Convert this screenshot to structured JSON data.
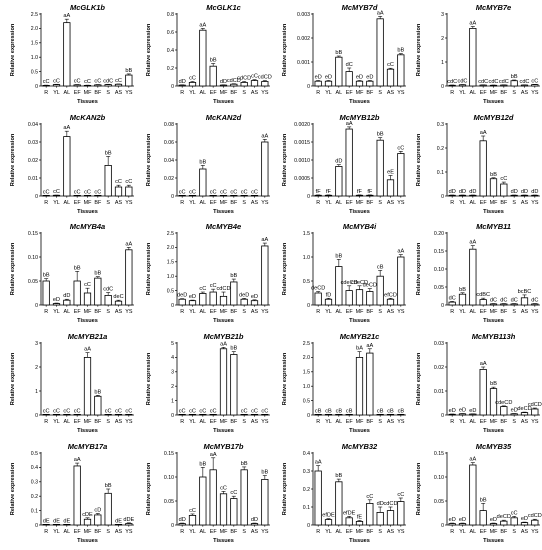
{
  "figure": {
    "xlabel": "Tissues",
    "ylabel": "Relative expression",
    "categories": [
      "R",
      "YL",
      "AL",
      "EF",
      "MF",
      "BF",
      "S",
      "AS",
      "YS"
    ]
  },
  "chart_data": [
    {
      "type": "bar",
      "title": "McGLK1b",
      "ylim": [
        0,
        2.5
      ],
      "yticks": [
        "0",
        "0.5",
        "1.0",
        "1.5",
        "2.0",
        "2.5"
      ],
      "values": [
        0.02,
        0.05,
        2.2,
        0.04,
        0.02,
        0.04,
        0.05,
        0.06,
        0.38
      ],
      "errors": [
        0.01,
        0.01,
        0.12,
        0.01,
        0.01,
        0.01,
        0.01,
        0.01,
        0.04
      ],
      "labels": [
        "cC",
        "cC",
        "aA",
        "cC",
        "cC",
        "cC",
        "cdC",
        "cC",
        "bB"
      ]
    },
    {
      "type": "bar",
      "title": "McGLK1c",
      "ylim": [
        0,
        0.8
      ],
      "yticks": [
        "0",
        "0.2",
        "0.4",
        "0.6",
        "0.8"
      ],
      "values": [
        0.01,
        0.04,
        0.62,
        0.22,
        0.01,
        0.02,
        0.04,
        0.06,
        0.05
      ],
      "errors": [
        0.003,
        0.01,
        0.02,
        0.03,
        0.003,
        0.005,
        0.01,
        0.01,
        0.01
      ],
      "labels": [
        "dD",
        "cC",
        "aA",
        "bB",
        "dD",
        "cdCD",
        "cdCD",
        "cC",
        "cdCD"
      ]
    },
    {
      "type": "bar",
      "title": "McMYB7d",
      "ylim": [
        0,
        0.003
      ],
      "yticks": [
        "0",
        "0.001",
        "0.002",
        "0.003"
      ],
      "values": [
        0.0002,
        0.0002,
        0.0012,
        0.0006,
        0.0002,
        0.0002,
        0.0028,
        0.0007,
        0.0013
      ],
      "errors": [
        3e-05,
        3e-05,
        5e-05,
        0.00015,
        3e-05,
        3e-05,
        0.0001,
        4e-05,
        5e-05
      ],
      "labels": [
        "eD",
        "eD",
        "bB",
        "dC",
        "eD",
        "eD",
        "aA",
        "cC",
        "bB"
      ]
    },
    {
      "type": "bar",
      "title": "McMYB7e",
      "ylim": [
        0,
        3
      ],
      "yticks": [
        "0",
        "1",
        "2",
        "3"
      ],
      "values": [
        0.03,
        0.05,
        2.4,
        0.04,
        0.03,
        0.04,
        0.22,
        0.04,
        0.06
      ],
      "errors": [
        0.01,
        0.01,
        0.08,
        0.01,
        0.01,
        0.01,
        0.03,
        0.01,
        0.01
      ],
      "labels": [
        "cdC",
        "cdC",
        "aA",
        "cdC",
        "cdC",
        "cdC",
        "bB",
        "cdC",
        "cC"
      ]
    },
    {
      "type": "bar",
      "title": "McKAN2b",
      "ylim": [
        0,
        0.04
      ],
      "yticks": [
        "0",
        "0.01",
        "0.02",
        "0.03",
        "0.04"
      ],
      "values": [
        0.0003,
        0.0004,
        0.033,
        0.0003,
        0.0003,
        0.0003,
        0.017,
        0.005,
        0.005
      ],
      "errors": [
        0.0001,
        0.0001,
        0.003,
        0.0001,
        0.0001,
        0.0001,
        0.005,
        0.001,
        0.001
      ],
      "labels": [
        "cC",
        "cC",
        "aA",
        "cC",
        "cC",
        "cC",
        "bB",
        "cC",
        "cC"
      ]
    },
    {
      "type": "bar",
      "title": "McKAN2d",
      "ylim": [
        0,
        0.08
      ],
      "yticks": [
        "0",
        "0.02",
        "0.04",
        "0.06",
        "0.08"
      ],
      "values": [
        0.0003,
        0.0003,
        0.03,
        0.0005,
        0.0003,
        0.0003,
        0.0003,
        0.0003,
        0.06
      ],
      "errors": [
        0.0001,
        0.0001,
        0.004,
        0.0001,
        0.0001,
        0.0001,
        0.0001,
        0.0001,
        0.003
      ],
      "labels": [
        "cC",
        "cC",
        "bB",
        "cC",
        "cC",
        "cC",
        "cC",
        "cC",
        "aA"
      ]
    },
    {
      "type": "bar",
      "title": "McMYB12b",
      "ylim": [
        0,
        0.002
      ],
      "yticks": [
        "0",
        "0.0005",
        "0.0010",
        "0.0015",
        "0.0020"
      ],
      "values": [
        2e-05,
        2e-05,
        0.00082,
        0.00186,
        2e-05,
        2e-05,
        0.00155,
        0.00045,
        0.00118
      ],
      "errors": [
        1e-05,
        1e-05,
        5e-05,
        6e-05,
        1e-05,
        1e-05,
        7e-05,
        0.00012,
        6e-05
      ],
      "labels": [
        "fF",
        "fF",
        "dD",
        "aA",
        "fF",
        "fF",
        "bB",
        "eE",
        "cC"
      ]
    },
    {
      "type": "bar",
      "title": "McMYB12d",
      "ylim": [
        0,
        0.3
      ],
      "yticks": [
        "0",
        "0.1",
        "0.2",
        "0.3"
      ],
      "values": [
        0.003,
        0.003,
        0.003,
        0.23,
        0.072,
        0.05,
        0.003,
        0.003,
        0.003
      ],
      "errors": [
        0.001,
        0.001,
        0.001,
        0.02,
        0.004,
        0.008,
        0.001,
        0.001,
        0.001
      ],
      "labels": [
        "dD",
        "dD",
        "dD",
        "aA",
        "bB",
        "cC",
        "dD",
        "dD",
        "dD"
      ]
    },
    {
      "type": "bar",
      "title": "McMYB4a",
      "ylim": [
        0,
        0.15
      ],
      "yticks": [
        "0",
        "0.05",
        "0.10",
        "0.15"
      ],
      "values": [
        0.05,
        0.003,
        0.01,
        0.05,
        0.025,
        0.056,
        0.02,
        0.008,
        0.115
      ],
      "errors": [
        0.005,
        0.001,
        0.002,
        0.02,
        0.01,
        0.003,
        0.006,
        0.002,
        0.005
      ],
      "labels": [
        "bB",
        "eD",
        "dD",
        "bB",
        "cC",
        "bB",
        "cdC",
        "deC",
        "aA"
      ]
    },
    {
      "type": "bar",
      "title": "McMYB4e",
      "ylim": [
        0,
        2.5
      ],
      "yticks": [
        "0",
        "0.5",
        "1.0",
        "1.5",
        "2.0",
        "2.5"
      ],
      "values": [
        0.2,
        0.15,
        0.4,
        0.45,
        0.3,
        0.8,
        0.2,
        0.15,
        2.05
      ],
      "errors": [
        0.02,
        0.02,
        0.05,
        0.1,
        0.15,
        0.1,
        0.03,
        0.03,
        0.1
      ],
      "labels": [
        "deD",
        "eD",
        "cC",
        "cC",
        "cdCD",
        "bB",
        "deD",
        "eD",
        "aA"
      ]
    },
    {
      "type": "bar",
      "title": "McMYB4i",
      "ylim": [
        0,
        1.5
      ],
      "yticks": [
        "0",
        "0.5",
        "1.0",
        "1.5"
      ],
      "values": [
        0.25,
        0.12,
        0.8,
        0.3,
        0.32,
        0.28,
        0.6,
        0.12,
        1.0
      ],
      "errors": [
        0.03,
        0.02,
        0.15,
        0.1,
        0.08,
        0.06,
        0.12,
        0.02,
        0.05
      ],
      "labels": [
        "deCD",
        "fD",
        "bB",
        "cdeCD",
        "cdeCD",
        "deCD",
        "cB",
        "efCD",
        "aA"
      ]
    },
    {
      "type": "bar",
      "title": "McMYB11",
      "ylim": [
        0,
        0.2
      ],
      "yticks": [
        "0",
        "0.05",
        "0.10",
        "0.15",
        "0.20"
      ],
      "values": [
        0.008,
        0.03,
        0.155,
        0.015,
        0.003,
        0.003,
        0.003,
        0.02,
        0.003
      ],
      "errors": [
        0.002,
        0.004,
        0.01,
        0.004,
        0.001,
        0.001,
        0.001,
        0.008,
        0.001
      ],
      "labels": [
        "dC",
        "bB",
        "aA",
        "cdBC",
        "dC",
        "dC",
        "dC",
        "bcBC",
        "dC"
      ]
    },
    {
      "type": "bar",
      "title": "McMYB21a",
      "ylim": [
        0,
        3
      ],
      "yticks": [
        "0",
        "1",
        "2",
        "3"
      ],
      "values": [
        0.02,
        0.02,
        0.02,
        0.02,
        2.4,
        0.78,
        0.02,
        0.02,
        0.02
      ],
      "errors": [
        0.005,
        0.005,
        0.005,
        0.005,
        0.2,
        0.04,
        0.005,
        0.005,
        0.005
      ],
      "labels": [
        "cC",
        "cC",
        "cC",
        "cC",
        "aA",
        "bB",
        "cC",
        "cC",
        "cC"
      ]
    },
    {
      "type": "bar",
      "title": "McMYB21b",
      "ylim": [
        0,
        5
      ],
      "yticks": [
        "0",
        "1",
        "2",
        "3",
        "4",
        "5"
      ],
      "values": [
        0.02,
        0.02,
        0.02,
        0.02,
        4.6,
        4.2,
        0.02,
        0.02,
        0.02
      ],
      "errors": [
        0.005,
        0.005,
        0.005,
        0.005,
        0.1,
        0.2,
        0.005,
        0.005,
        0.005
      ],
      "labels": [
        "cC",
        "cC",
        "cC",
        "cC",
        "aA",
        "bB",
        "cC",
        "cC",
        "cC"
      ]
    },
    {
      "type": "bar",
      "title": "McMYB21c",
      "ylim": [
        0,
        2.5
      ],
      "yticks": [
        "0",
        "0.5",
        "1.0",
        "1.5",
        "2.0",
        "2.5"
      ],
      "values": [
        0.02,
        0.02,
        0.02,
        0.02,
        2.0,
        2.15,
        0.02,
        0.02,
        0.02
      ],
      "errors": [
        0.005,
        0.005,
        0.005,
        0.005,
        0.2,
        0.15,
        0.005,
        0.005,
        0.005
      ],
      "labels": [
        "cB",
        "cB",
        "cB",
        "cB",
        "bA",
        "aA",
        "cB",
        "cB",
        "cB"
      ]
    },
    {
      "type": "bar",
      "title": "McMYB113h",
      "ylim": [
        0,
        0.03
      ],
      "yticks": [
        "0",
        "0.01",
        "0.02",
        "0.03"
      ],
      "values": [
        0.0003,
        0.0005,
        0.0004,
        0.019,
        0.011,
        0.0035,
        0.0005,
        0.001,
        0.0025
      ],
      "errors": [
        0.0001,
        0.0001,
        0.0001,
        0.001,
        0.0006,
        0.0003,
        0.0001,
        0.0002,
        0.0004
      ],
      "labels": [
        "eD",
        "eD",
        "eD",
        "aA",
        "bB",
        "cdeCD",
        "eD",
        "deCD",
        "cdCD"
      ]
    },
    {
      "type": "bar",
      "title": "McMYB17a",
      "ylim": [
        0,
        0.5
      ],
      "yticks": [
        "0",
        "0.1",
        "0.2",
        "0.3",
        "0.4",
        "0.5"
      ],
      "values": [
        0.003,
        0.003,
        0.003,
        0.41,
        0.04,
        0.07,
        0.22,
        0.003,
        0.01
      ],
      "errors": [
        0.001,
        0.001,
        0.001,
        0.02,
        0.01,
        0.01,
        0.03,
        0.001,
        0.005
      ],
      "labels": [
        "dE",
        "dE",
        "dE",
        "aA",
        "cDE",
        "cD",
        "bB",
        "dE",
        "dDE"
      ]
    },
    {
      "type": "bar",
      "title": "McMYB17b",
      "ylim": [
        0,
        0.15
      ],
      "yticks": [
        "0",
        "0.05",
        "0.10",
        "0.15"
      ],
      "values": [
        0.003,
        0.02,
        0.1,
        0.115,
        0.065,
        0.055,
        0.115,
        0.003,
        0.095
      ],
      "errors": [
        0.001,
        0.003,
        0.02,
        0.025,
        0.005,
        0.005,
        0.006,
        0.001,
        0.008
      ],
      "labels": [
        "dD",
        "cC",
        "bB",
        "aA",
        "cC",
        "cC",
        "bB",
        "dD",
        "bB"
      ]
    },
    {
      "type": "bar",
      "title": "McMYB32",
      "ylim": [
        0,
        0.4
      ],
      "yticks": [
        "0",
        "0.1",
        "0.2",
        "0.3",
        "0.4"
      ],
      "values": [
        0.3,
        0.03,
        0.24,
        0.04,
        0.02,
        0.12,
        0.07,
        0.08,
        0.13
      ],
      "errors": [
        0.03,
        0.005,
        0.015,
        0.008,
        0.005,
        0.02,
        0.03,
        0.02,
        0.02
      ],
      "labels": [
        "aA",
        "efDE",
        "bB",
        "efDE",
        "fE",
        "cC",
        "dD",
        "cdCD",
        "cC"
      ]
    },
    {
      "type": "bar",
      "title": "McMYB35",
      "ylim": [
        0,
        0.15
      ],
      "yticks": [
        "0",
        "0.05",
        "0.10",
        "0.15"
      ],
      "values": [
        0.003,
        0.003,
        0.125,
        0.03,
        0.003,
        0.008,
        0.015,
        0.005,
        0.01
      ],
      "errors": [
        0.001,
        0.001,
        0.005,
        0.015,
        0.001,
        0.002,
        0.003,
        0.001,
        0.002
      ],
      "labels": [
        "eD",
        "eD",
        "aA",
        "bB",
        "eD",
        "deCD",
        "cC",
        "eD",
        "cdCD"
      ]
    }
  ]
}
